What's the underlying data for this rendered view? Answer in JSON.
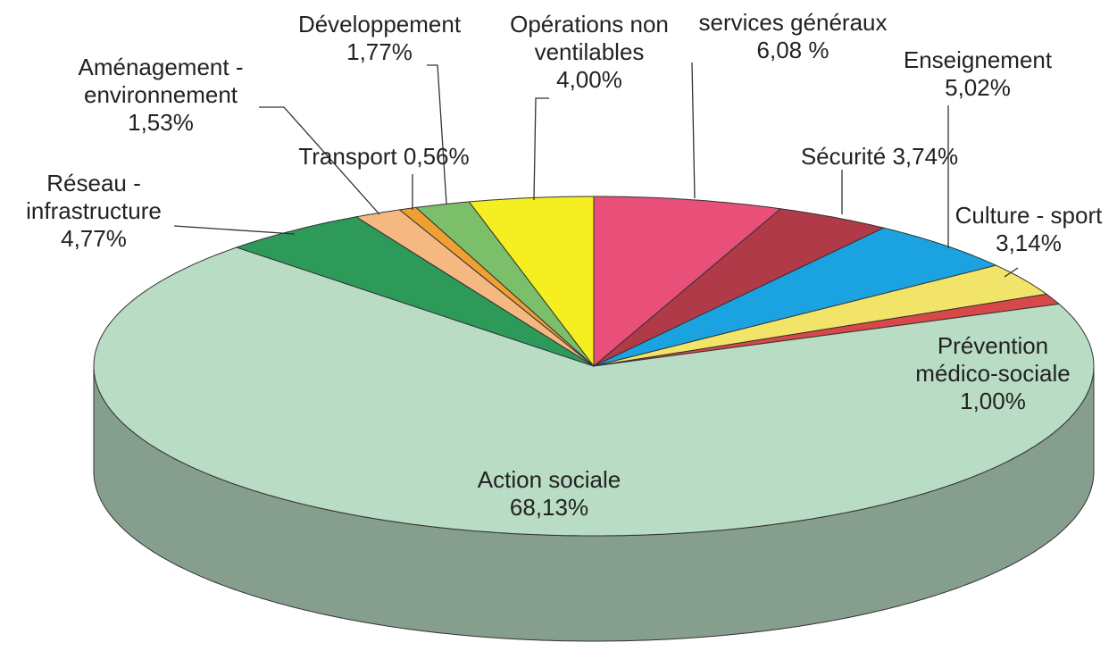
{
  "chart_data": {
    "type": "pie3d",
    "categories": [
      "services généraux",
      "Sécurité",
      "Enseignement",
      "Culture - sport",
      "Prévention médico-sociale",
      "Action sociale",
      "Réseau - infrastructure",
      "Aménagement - environnement",
      "Transport",
      "Développement",
      "Opérations non ventilables"
    ],
    "values": [
      6.08,
      3.74,
      5.02,
      3.14,
      1.0,
      68.13,
      4.77,
      1.53,
      0.56,
      1.77,
      4.0
    ],
    "value_labels": [
      "6,08 %",
      "3,74%",
      "5,02%",
      "3,14%",
      "1,00%",
      "68,13%",
      "4,77%",
      "1,53%",
      "0,56%",
      "1,77%",
      "4,00%"
    ],
    "colors": [
      "#e8507a",
      "#b03a48",
      "#1aa3e0",
      "#f2e468",
      "#d94848",
      "#b9dcc4",
      "#2e9a5a",
      "#f5b880",
      "#f0a030",
      "#7cbf6a",
      "#f5ee20"
    ]
  }
}
